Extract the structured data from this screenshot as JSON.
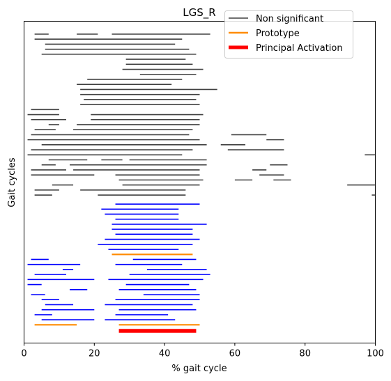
{
  "chart_data": {
    "type": "line",
    "title": "LGS_R",
    "xlabel": "% gait cycle",
    "ylabel": "Gait cycles",
    "xlim": [
      0,
      100
    ],
    "xticks": [
      0,
      20,
      40,
      60,
      80,
      100
    ],
    "yticks_shown": false,
    "grid": false,
    "legend": {
      "placement": "top-right",
      "entries": [
        {
          "label": "Non significant",
          "color": "#404040",
          "style": "thin"
        },
        {
          "label": "Prototype",
          "color": "#ff8c00",
          "style": "medium"
        },
        {
          "label": "Principal Activation",
          "color": "#ff0000",
          "style": "thick"
        }
      ]
    },
    "series": [
      {
        "name": "Non significant",
        "color": "#404040",
        "segments_by_cycle": [
          [
            [
              3,
              7
            ],
            [
              15,
              21
            ],
            [
              25,
              53
            ]
          ],
          [
            [
              3,
              45
            ]
          ],
          [
            [
              6,
              43
            ]
          ],
          [
            [
              6,
              47
            ]
          ],
          [
            [
              5,
              49
            ]
          ],
          [
            [
              29,
              46
            ]
          ],
          [
            [
              29,
              48
            ]
          ],
          [
            [
              28,
              51
            ]
          ],
          [
            [
              33,
              49
            ]
          ],
          [
            [
              18,
              45
            ]
          ],
          [
            [
              15,
              42
            ]
          ],
          [
            [
              16,
              55
            ]
          ],
          [
            [
              16,
              50
            ]
          ],
          [
            [
              17,
              49
            ]
          ],
          [
            [
              16,
              50
            ]
          ],
          [
            [
              2,
              10
            ]
          ],
          [
            [
              1,
              10
            ],
            [
              19,
              51
            ]
          ],
          [
            [
              2,
              12
            ],
            [
              19,
              50
            ]
          ],
          [
            [
              7,
              10
            ],
            [
              15,
              50
            ]
          ],
          [
            [
              3,
              9
            ],
            [
              14,
              48
            ]
          ],
          [
            [
              2,
              47
            ],
            [
              59,
              69
            ]
          ],
          [
            [
              1,
              50
            ],
            [
              69,
              74
            ]
          ],
          [
            [
              5,
              52
            ],
            [
              56,
              63
            ]
          ],
          [
            [
              2,
              48
            ],
            [
              58,
              74
            ]
          ],
          [
            [
              1,
              45
            ],
            [
              97,
              100
            ]
          ],
          [
            [
              7,
              18
            ],
            [
              22,
              28
            ],
            [
              30,
              52
            ]
          ],
          [
            [
              5,
              9
            ],
            [
              13,
              52
            ],
            [
              70,
              75
            ]
          ],
          [
            [
              2,
              12
            ],
            [
              14,
              50
            ],
            [
              65,
              69
            ]
          ],
          [
            [
              2,
              20
            ],
            [
              26,
              50
            ],
            [
              67,
              74
            ]
          ],
          [
            [
              27,
              51
            ],
            [
              60,
              65
            ],
            [
              71,
              76
            ]
          ],
          [
            [
              8,
              14
            ],
            [
              28,
              50
            ],
            [
              92,
              100
            ]
          ],
          [
            [
              3,
              10
            ],
            [
              16,
              46
            ]
          ],
          [
            [
              3,
              8
            ],
            [
              21,
              46
            ],
            [
              99,
              100
            ]
          ]
        ]
      },
      {
        "name": "Principal Activation group (blue, upper)",
        "color": "#0000ff",
        "segments_by_cycle": [
          [
            [
              26,
              50
            ]
          ],
          [
            [
              22,
              44
            ]
          ],
          [
            [
              23,
              44
            ]
          ],
          [
            [
              26,
              44
            ]
          ],
          [
            [
              25,
              52
            ]
          ],
          [
            [
              25,
              48
            ]
          ],
          [
            [
              26,
              48
            ]
          ],
          [
            [
              23,
              50
            ]
          ],
          [
            [
              21,
              48
            ]
          ],
          [
            [
              24,
              44
            ]
          ]
        ]
      },
      {
        "name": "Prototype (upper)",
        "color": "#ff8c00",
        "segments_by_cycle": [
          [
            [
              25,
              48
            ]
          ]
        ]
      },
      {
        "name": "Principal Activation group (blue, lower)",
        "color": "#0000ff",
        "segments_by_cycle": [
          [
            [
              2,
              7
            ],
            [
              31,
              49
            ]
          ],
          [
            [
              1,
              16
            ],
            [
              26,
              45
            ]
          ],
          [
            [
              11,
              14
            ],
            [
              35,
              52
            ]
          ],
          [
            [
              3,
              12
            ],
            [
              30,
              53
            ]
          ],
          [
            [
              1,
              20
            ],
            [
              24,
              51
            ]
          ],
          [
            [
              1,
              5
            ],
            [
              29,
              47
            ]
          ],
          [
            [
              13,
              18
            ],
            [
              27,
              49
            ]
          ],
          [
            [
              2,
              6
            ],
            [
              34,
              50
            ]
          ],
          [
            [
              5,
              10
            ],
            [
              26,
              50
            ]
          ],
          [
            [
              6,
              14
            ],
            [
              23,
              48
            ]
          ],
          [
            [
              5,
              20
            ],
            [
              27,
              49
            ]
          ],
          [
            [
              3,
              8
            ],
            [
              26,
              41
            ]
          ],
          [
            [
              5,
              20
            ],
            [
              23,
              43
            ]
          ]
        ]
      },
      {
        "name": "Prototype (lower)",
        "color": "#ff8c00",
        "segments_by_cycle": [
          [
            [
              3,
              15
            ],
            [
              27,
              50
            ]
          ]
        ]
      },
      {
        "name": "Principal Activation",
        "color": "#ff0000",
        "segments_by_cycle": [
          [
            [
              27,
              49
            ]
          ]
        ]
      }
    ]
  }
}
